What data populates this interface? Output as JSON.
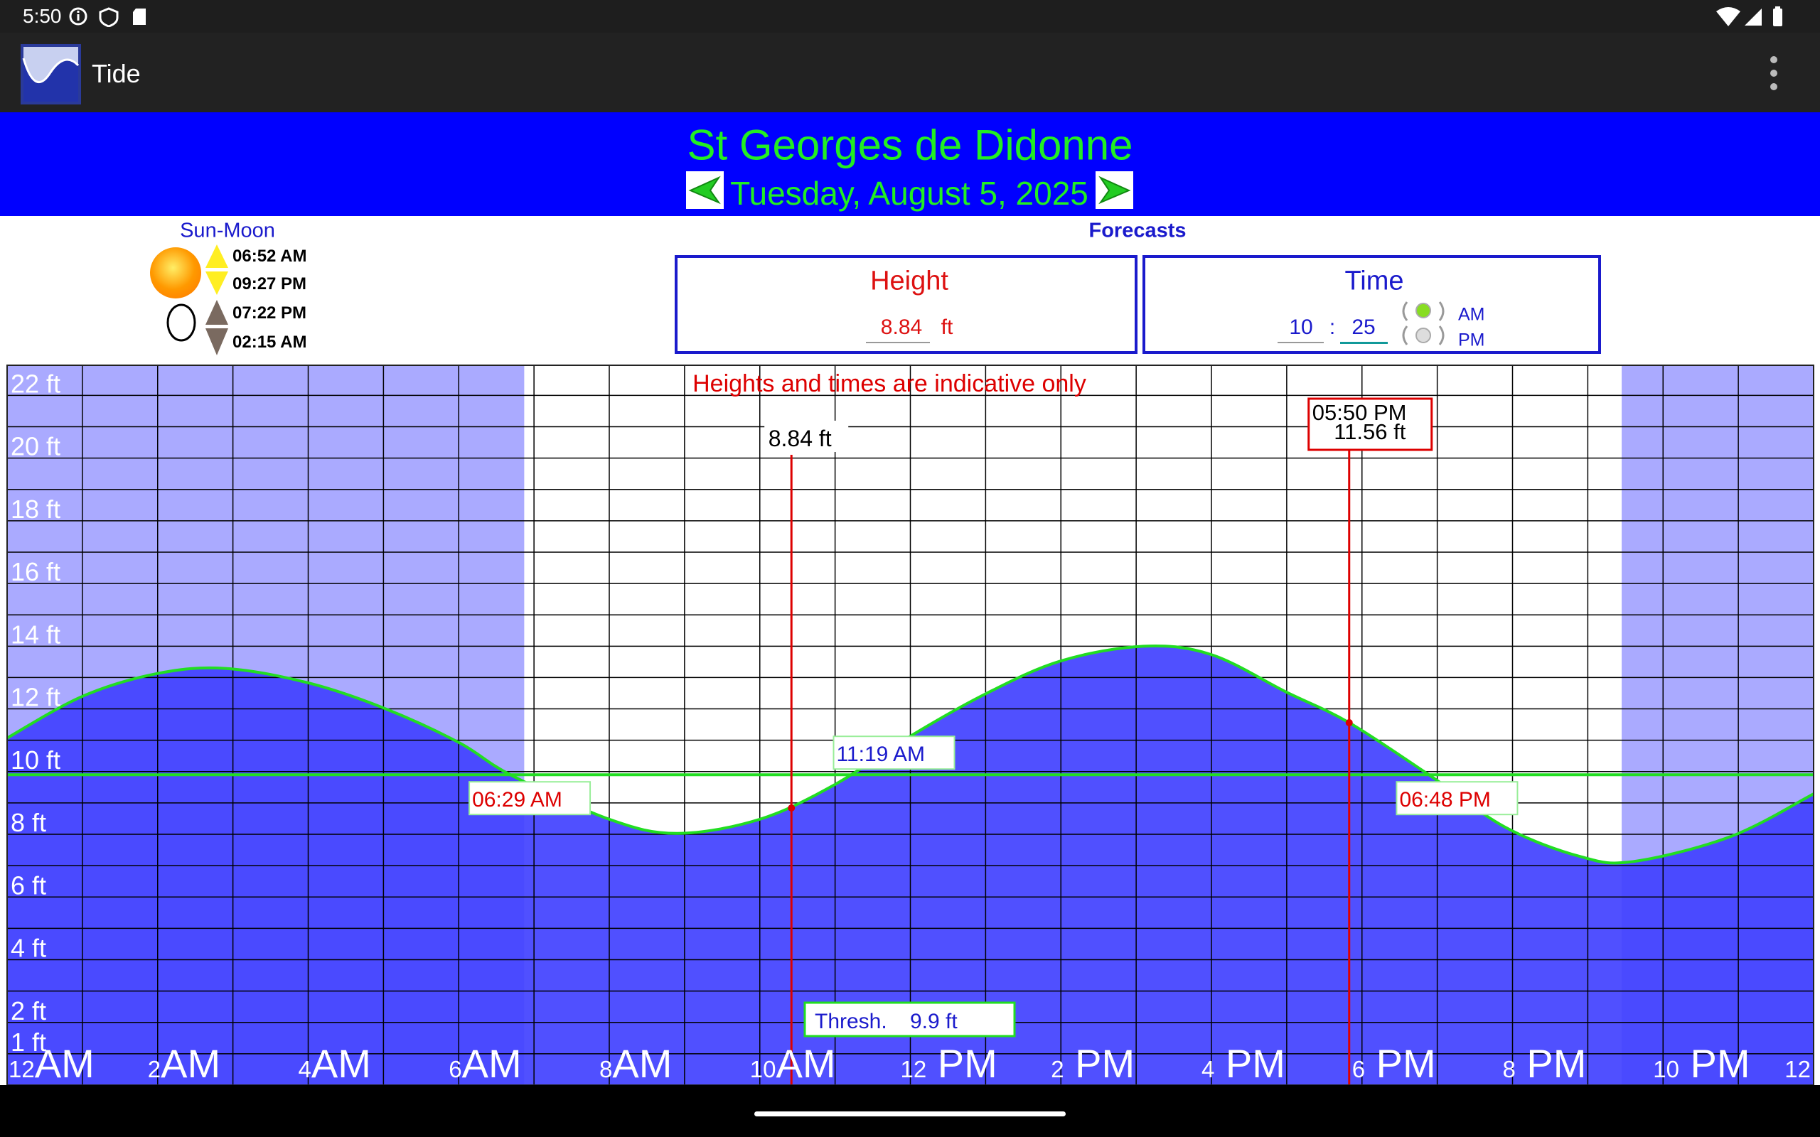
{
  "status_bar": {
    "time": "5:50"
  },
  "app_bar": {
    "title": "Tide"
  },
  "header": {
    "location": "St Georges de Didonne",
    "date": "Tuesday, August 5, 2025"
  },
  "sun_moon": {
    "title": "Sun-Moon",
    "sunrise": "06:52 AM",
    "sunset": "09:27 PM",
    "moonrise": "07:22 PM",
    "moonset": "02:15 AM"
  },
  "forecasts": {
    "title": "Forecasts",
    "height": {
      "title": "Height",
      "value": 8.84,
      "unit": "ft"
    },
    "time": {
      "title": "Time",
      "hour": 10,
      "separator": ":",
      "minute": 25,
      "am": "AM",
      "pm": "PM"
    }
  },
  "chart_data": {
    "type": "area",
    "annotation": "Heights and times are indicative only",
    "x": [
      0,
      1,
      2,
      2.9,
      4,
      5,
      6,
      6.7,
      8,
      8.9,
      10,
      11,
      12,
      13,
      14,
      15.1,
      16,
      17,
      17.83,
      18.9,
      19.9,
      20.9,
      21.6,
      22.9,
      24
    ],
    "values": [
      11.07,
      12.4,
      13.13,
      13.29,
      12.83,
      12.03,
      10.93,
      9.88,
      8.48,
      8.03,
      8.48,
      9.59,
      11.13,
      12.48,
      13.53,
      14.0,
      13.73,
      12.53,
      11.56,
      9.88,
      8.23,
      7.29,
      7.13,
      7.93,
      9.29
    ],
    "color": "#22dd22",
    "fill_color": "#4343ff",
    "xlim": [
      0,
      24
    ],
    "xticks": [
      {
        "value": 0,
        "label": "12AM"
      },
      {
        "value": 2,
        "label": "2AM"
      },
      {
        "value": 4,
        "label": "4AM"
      },
      {
        "value": 6,
        "label": "6AM"
      },
      {
        "value": 8,
        "label": "8AM"
      },
      {
        "value": 10,
        "label": "10AM"
      },
      {
        "value": 12,
        "label": "12 PM"
      },
      {
        "value": 14,
        "label": "2 PM"
      },
      {
        "value": 16,
        "label": "4 PM"
      },
      {
        "value": 18,
        "label": "6 PM"
      },
      {
        "value": 20,
        "label": "8 PM"
      },
      {
        "value": 22,
        "label": "10 PM"
      },
      {
        "value": 24,
        "label": "12"
      }
    ],
    "ylim": [
      0,
      22.96
    ],
    "yticks": [
      {
        "value": 1,
        "label": "1 ft"
      },
      {
        "value": 2,
        "label": "2 ft"
      },
      {
        "value": 4,
        "label": "4 ft"
      },
      {
        "value": 6,
        "label": "6 ft"
      },
      {
        "value": 8,
        "label": "8 ft"
      },
      {
        "value": 10,
        "label": "10 ft"
      },
      {
        "value": 12,
        "label": "12 ft"
      },
      {
        "value": 14,
        "label": "14 ft"
      },
      {
        "value": 16,
        "label": "16 ft"
      },
      {
        "value": 18,
        "label": "18 ft"
      },
      {
        "value": 20,
        "label": "20 ft"
      },
      {
        "value": 22,
        "label": "22 ft"
      }
    ],
    "grid": true,
    "night_shading": [
      [
        0,
        6.87
      ],
      [
        21.45,
        24
      ]
    ],
    "night_color": "#aaaaff",
    "threshold": {
      "value": 9.9,
      "name": "Thresh.",
      "value_label": "9.9 ft",
      "color": "#22dd22"
    },
    "crossings": [
      {
        "x": 6.48,
        "label": "06:29 AM",
        "side": "below",
        "color": "#dd0000"
      },
      {
        "x": 11.32,
        "label": "11:19 AM",
        "side": "above",
        "color": "#1a1acc"
      },
      {
        "x": 18.8,
        "label": "06:48 PM",
        "side": "below",
        "color": "#dd0000"
      }
    ],
    "cursors": [
      {
        "x": 10.42,
        "value": 8.84,
        "value_label": "8.84 ft"
      },
      {
        "x": 17.83,
        "time_label": "05:50 PM",
        "value": 11.56,
        "value_label": "11.56 ft"
      }
    ],
    "cursor_color": "#dd0000"
  }
}
